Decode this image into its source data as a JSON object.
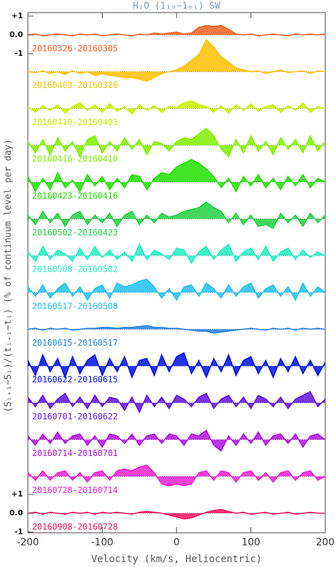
{
  "chart_data": {
    "type": "stacked-spectra",
    "title": "H₂O (1₁₀−1₀₁) SW",
    "x_label": "Velocity (km/s, Heliocentric)",
    "y_label": "(Sᵢ₊₁−Sᵢ)/(tᵢ₊₁−tᵢ) (% of continuum level per day)",
    "xlim": [
      -200,
      200
    ],
    "xticks": [
      -200,
      -100,
      0,
      100,
      200
    ],
    "yticks": [
      {
        "value": 1,
        "label": "+1"
      },
      {
        "value": 0,
        "label": "0.0"
      },
      {
        "value": -1,
        "label": "-1"
      }
    ],
    "x": [
      -200,
      -190,
      -180,
      -170,
      -160,
      -150,
      -140,
      -130,
      -120,
      -110,
      -100,
      -90,
      -80,
      -70,
      -60,
      -50,
      -40,
      -30,
      -20,
      -10,
      0,
      10,
      20,
      30,
      40,
      50,
      60,
      70,
      80,
      90,
      100,
      110,
      120,
      130,
      140,
      150,
      160,
      170,
      180,
      190,
      200
    ],
    "series": [
      {
        "name": "20160326-20160305",
        "color": "#f06020",
        "values": [
          0,
          0.05,
          -0.05,
          0,
          0.05,
          0,
          -0.05,
          0.05,
          0,
          0.05,
          -0.05,
          0,
          0.05,
          0,
          -0.05,
          0.05,
          0,
          0.1,
          0.05,
          0.1,
          0.15,
          0.05,
          0.1,
          0.4,
          0.5,
          0.45,
          0.5,
          0.3,
          0.05,
          0,
          0.05,
          -0.05,
          0,
          0.05,
          0,
          -0.05,
          0.05,
          0,
          0.05,
          0,
          0.05
        ]
      },
      {
        "name": "20160403-20160326",
        "color": "#ffc000",
        "values": [
          0,
          -0.05,
          0.05,
          -0.1,
          0,
          -0.15,
          0.05,
          -0.1,
          0,
          -0.2,
          -0.1,
          -0.2,
          -0.25,
          -0.3,
          -0.3,
          -0.4,
          -0.5,
          -0.3,
          -0.1,
          0,
          0.1,
          0.3,
          0.6,
          0.9,
          1.7,
          1.3,
          0.8,
          0.5,
          0.2,
          0.1,
          0,
          0.05,
          -0.1,
          0,
          0.1,
          -0.05,
          0,
          0.05,
          -0.1,
          0.05,
          0
        ]
      },
      {
        "name": "20160410-20160403",
        "color": "#c8f000",
        "values": [
          0.1,
          -0.2,
          0.15,
          -0.1,
          0.2,
          -0.25,
          0.1,
          0.3,
          -0.1,
          0.2,
          -0.2,
          0.25,
          -0.15,
          0.1,
          -0.3,
          0.2,
          -0.1,
          0.15,
          -0.2,
          0.1,
          0.05,
          0.3,
          0.4,
          0.2,
          0.1,
          -0.2,
          0.15,
          -0.25,
          0.2,
          -0.1,
          0.25,
          -0.15,
          0.1,
          0.2,
          -0.2,
          0.15,
          -0.1,
          0.3,
          -0.2,
          0.1,
          0
        ]
      },
      {
        "name": "20160416-20160410",
        "color": "#80f000",
        "values": [
          0.2,
          -0.4,
          0.3,
          -0.5,
          0.4,
          -0.3,
          0.2,
          -0.6,
          0.3,
          0.5,
          -0.4,
          0.2,
          -0.3,
          0.4,
          -0.2,
          0.3,
          -0.5,
          0.2,
          0.1,
          -0.3,
          0.2,
          0.4,
          0.3,
          0.6,
          0.9,
          0.5,
          -0.2,
          -0.6,
          0.3,
          -0.4,
          0.5,
          -0.3,
          0.2,
          -0.5,
          0.4,
          -0.2,
          0.3,
          -0.4,
          0.5,
          -0.3,
          0.2
        ]
      },
      {
        "name": "20160423-20160416",
        "color": "#20e000",
        "values": [
          0.3,
          -0.5,
          0.2,
          -0.4,
          0.5,
          -0.3,
          0.1,
          -0.5,
          0.4,
          -0.2,
          0.3,
          -0.4,
          0.2,
          -0.3,
          0.4,
          0.3,
          -0.4,
          0.2,
          0.5,
          0.4,
          0.8,
          1.0,
          1.2,
          1.0,
          0.7,
          0.3,
          -0.3,
          0.2,
          -0.5,
          0.3,
          -0.2,
          0.4,
          -0.3,
          0.2,
          -0.4,
          0.3,
          -0.2,
          0.4,
          -0.3,
          0.2,
          0
        ]
      },
      {
        "name": "20160502-20160423",
        "color": "#20d040",
        "values": [
          0.2,
          -0.3,
          0.4,
          -0.2,
          0.3,
          -0.4,
          0.2,
          0.4,
          -0.3,
          0.2,
          -0.2,
          0.3,
          -0.4,
          0.2,
          0.4,
          -0.3,
          0.2,
          -0.2,
          0.3,
          0.1,
          0.2,
          0.4,
          0.5,
          0.6,
          0.9,
          0.6,
          0.4,
          -0.2,
          0.3,
          -0.3,
          0.2,
          -0.4,
          -0.3,
          -0.5,
          0.3,
          -0.2,
          0.2,
          -0.4,
          0.3,
          -0.2,
          0.2
        ]
      },
      {
        "name": "20160508-20160502",
        "color": "#20f0c0",
        "values": [
          0.2,
          -0.3,
          0.5,
          -0.2,
          0.3,
          0.1,
          -0.3,
          0.4,
          -0.2,
          0.5,
          -0.1,
          0.3,
          -0.2,
          0.2,
          -0.3,
          0.6,
          -0.2,
          0.3,
          0.1,
          -0.2,
          0.4,
          0.3,
          -0.4,
          0.2,
          0.5,
          -0.2,
          0.3,
          0.6,
          -0.3,
          0.2,
          0.4,
          -0.2,
          0.5,
          -0.3,
          0.2,
          0.4,
          -0.2,
          0.3,
          -0.1,
          0.2,
          0
        ]
      },
      {
        "name": "20160517-20160508",
        "color": "#20c0f0",
        "values": [
          0.3,
          -0.2,
          0.4,
          -0.3,
          0.2,
          0.5,
          -0.2,
          0.3,
          -0.4,
          0.2,
          0.4,
          -0.3,
          0.5,
          0.3,
          0.4,
          0.6,
          0.7,
          0.3,
          -0.3,
          0.2,
          -0.4,
          0.3,
          0.4,
          -0.2,
          0.5,
          0.2,
          -0.3,
          0.4,
          -0.2,
          0.3,
          0.5,
          -0.3,
          0.2,
          0.4,
          -0.2,
          0.3,
          -0.4,
          0.5,
          -0.2,
          0.3,
          0
        ]
      },
      {
        "name": "20160615-20160517",
        "color": "#2080e0",
        "values": [
          0,
          0.05,
          -0.05,
          0.05,
          0,
          0.05,
          -0.05,
          0,
          0.05,
          0.05,
          0.1,
          0.1,
          0.05,
          0.1,
          0.1,
          0.15,
          0.2,
          0.1,
          0.1,
          0.05,
          0.05,
          0,
          -0.05,
          -0.1,
          -0.1,
          -0.2,
          -0.15,
          -0.1,
          -0.05,
          0,
          0.05,
          0,
          -0.05,
          0.05,
          0,
          0.05,
          -0.05,
          0.05,
          0,
          0.05,
          0
        ]
      },
      {
        "name": "20160622-20160615",
        "color": "#0010e0",
        "values": [
          0.3,
          -0.5,
          0.6,
          -0.3,
          0.4,
          -0.6,
          0.5,
          -0.4,
          0.3,
          0.6,
          -0.5,
          0.4,
          -0.3,
          0.5,
          -0.6,
          0.3,
          0.4,
          -0.5,
          0.6,
          -0.3,
          0.5,
          0.7,
          -0.4,
          0.3,
          -0.6,
          0.4,
          -0.3,
          0.6,
          -0.5,
          0.3,
          0.5,
          -0.4,
          0.3,
          -0.6,
          0.4,
          -0.3,
          0.5,
          -0.4,
          0.3,
          -0.5,
          0.2
        ]
      },
      {
        "name": "20160701-20160622",
        "color": "#6010e0",
        "values": [
          0.3,
          -0.2,
          0.4,
          -0.3,
          0.2,
          0.5,
          -0.2,
          0.3,
          -0.3,
          0.4,
          -0.2,
          0.3,
          0.2,
          -0.4,
          0.3,
          -0.5,
          0.4,
          -0.2,
          0.3,
          -0.3,
          0.4,
          0.2,
          -0.2,
          0.3,
          0.5,
          -0.3,
          0.2,
          0.4,
          -0.2,
          0.3,
          -0.3,
          0.4,
          0.2,
          -0.2,
          0.3,
          -0.3,
          0.2,
          0.4,
          0.6,
          -0.2,
          0.2
        ]
      },
      {
        "name": "20160714-20160701",
        "color": "#b010e0",
        "values": [
          0.2,
          -0.3,
          0.3,
          -0.2,
          0.4,
          -0.2,
          0.2,
          0.3,
          -0.3,
          0.2,
          -0.4,
          0.3,
          0.2,
          -0.2,
          0.3,
          -0.3,
          0.2,
          0.3,
          -0.2,
          0.3,
          0.2,
          -0.3,
          0.3,
          0.2,
          0.5,
          -0.3,
          -0.6,
          0.2,
          -0.3,
          0.3,
          -0.2,
          0.4,
          -0.3,
          0.2,
          0.3,
          -0.2,
          0.3,
          -0.4,
          0.2,
          0.3,
          0
        ]
      },
      {
        "name": "20160728-20160714",
        "color": "#f020d0",
        "values": [
          0.2,
          -0.2,
          0.3,
          -0.2,
          0.2,
          0.3,
          -0.2,
          0.2,
          -0.3,
          0.2,
          0.3,
          -0.2,
          0.3,
          0.4,
          0.3,
          0.5,
          0.6,
          0.2,
          -0.4,
          -0.5,
          -0.4,
          -0.5,
          -0.4,
          0.2,
          0.3,
          -0.2,
          0.3,
          0.2,
          -0.3,
          0.2,
          0.3,
          -0.2,
          0.2,
          -0.3,
          0.2,
          0.3,
          -0.2,
          0.2,
          0.3,
          -0.2,
          0
        ]
      },
      {
        "name": "20160908-20160728",
        "color": "#f01060",
        "values": [
          0,
          0.05,
          -0.05,
          0.05,
          0,
          -0.05,
          0.05,
          0,
          0.05,
          -0.05,
          0.05,
          0,
          0.05,
          0,
          -0.05,
          0.05,
          0.1,
          0.05,
          0,
          -0.1,
          -0.2,
          -0.3,
          -0.25,
          -0.1,
          0.05,
          0.15,
          0.2,
          0.1,
          0,
          0.05,
          -0.05,
          0,
          0.05,
          -0.05,
          0,
          0.05,
          -0.05,
          0,
          0.05,
          0,
          0
        ]
      }
    ]
  }
}
